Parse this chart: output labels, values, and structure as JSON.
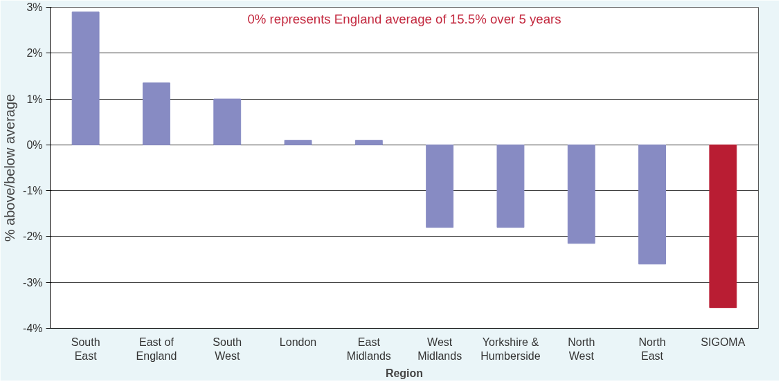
{
  "chart_data": {
    "type": "bar",
    "xlabel": "Region",
    "ylabel": "% above/below average",
    "annotations": [
      "0% represents England average of 15.5% over 5 years"
    ],
    "categories": [
      "South\nEast",
      "East of\nEngland",
      "South\nWest",
      "London",
      "East\nMidlands",
      "West\nMidlands",
      "Yorkshire &\nHumberside",
      "North\nWest",
      "North\nEast",
      "SIGOMA"
    ],
    "values": [
      2.9,
      1.35,
      1.0,
      0.1,
      0.1,
      -1.8,
      -1.8,
      -2.15,
      -2.6,
      -3.55
    ],
    "colors": [
      "#878bc3",
      "#878bc3",
      "#878bc3",
      "#878bc3",
      "#878bc3",
      "#878bc3",
      "#878bc3",
      "#878bc3",
      "#878bc3",
      "#b91d33"
    ],
    "ylim": [
      -4,
      3
    ],
    "yticks": [
      {
        "value": -4,
        "label": "-4%"
      },
      {
        "value": -3,
        "label": "-3%"
      },
      {
        "value": -2,
        "label": "-2%"
      },
      {
        "value": -1,
        "label": "-1%"
      },
      {
        "value": 0,
        "label": "0%"
      },
      {
        "value": 1,
        "label": "1%"
      },
      {
        "value": 2,
        "label": "2%"
      },
      {
        "value": 3,
        "label": "3%"
      }
    ],
    "grid": "y"
  }
}
